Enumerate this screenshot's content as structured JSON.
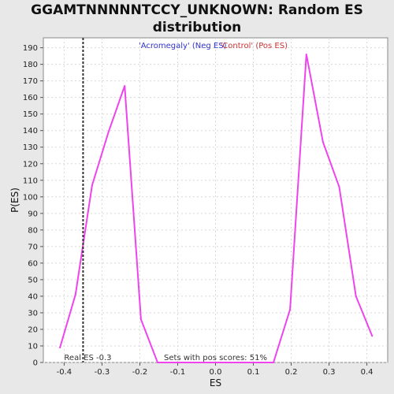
{
  "chart_data": {
    "type": "line",
    "title_line1": "GGAMTNNNNNTCCY_UNKNOWN: Random ES",
    "title_line2": "distribution",
    "xlabel": "ES",
    "ylabel": "P(ES)",
    "xlim": [
      -0.455,
      0.455
    ],
    "ylim": [
      0,
      196
    ],
    "x_ticks": [
      -0.4,
      -0.3,
      -0.2,
      -0.1,
      0.0,
      0.1,
      0.2,
      0.3,
      0.4
    ],
    "x_tick_labels": [
      "-0.4",
      "-0.3",
      "-0.2",
      "-0.1",
      "0.0",
      "0.1",
      "0.2",
      "0.3",
      "0.4"
    ],
    "y_ticks": [
      0,
      10,
      20,
      30,
      40,
      50,
      60,
      70,
      80,
      90,
      100,
      110,
      120,
      130,
      140,
      150,
      160,
      170,
      180,
      190
    ],
    "grid": true,
    "legend": {
      "placement": "top-center",
      "entries": [
        {
          "label": "'Acromegaly' (Neg ES)",
          "color": "#3333cc"
        },
        {
          "label": "'Control' (Pos ES)",
          "color": "#cc3333"
        }
      ]
    },
    "series": [
      {
        "color": "#ee44ee",
        "points": [
          [
            -0.411,
            9
          ],
          [
            -0.37,
            41
          ],
          [
            -0.326,
            107
          ],
          [
            -0.283,
            139
          ],
          [
            -0.24,
            167
          ],
          [
            -0.197,
            26
          ],
          [
            -0.153,
            0
          ],
          [
            0.153,
            0
          ],
          [
            0.197,
            32
          ],
          [
            0.24,
            186
          ],
          [
            0.284,
            133
          ],
          [
            0.327,
            106
          ],
          [
            0.371,
            40
          ],
          [
            0.414,
            16
          ]
        ]
      }
    ],
    "marker": {
      "x": -0.35,
      "label": "Real ES -0.3"
    },
    "footnote": "Sets with pos scores: 51%",
    "colors": {
      "background": "#e8e8e8",
      "plot_bg": "#ffffff",
      "line": "#ee44ee",
      "grid": "#d8d8d8",
      "marker": "#333333"
    }
  }
}
